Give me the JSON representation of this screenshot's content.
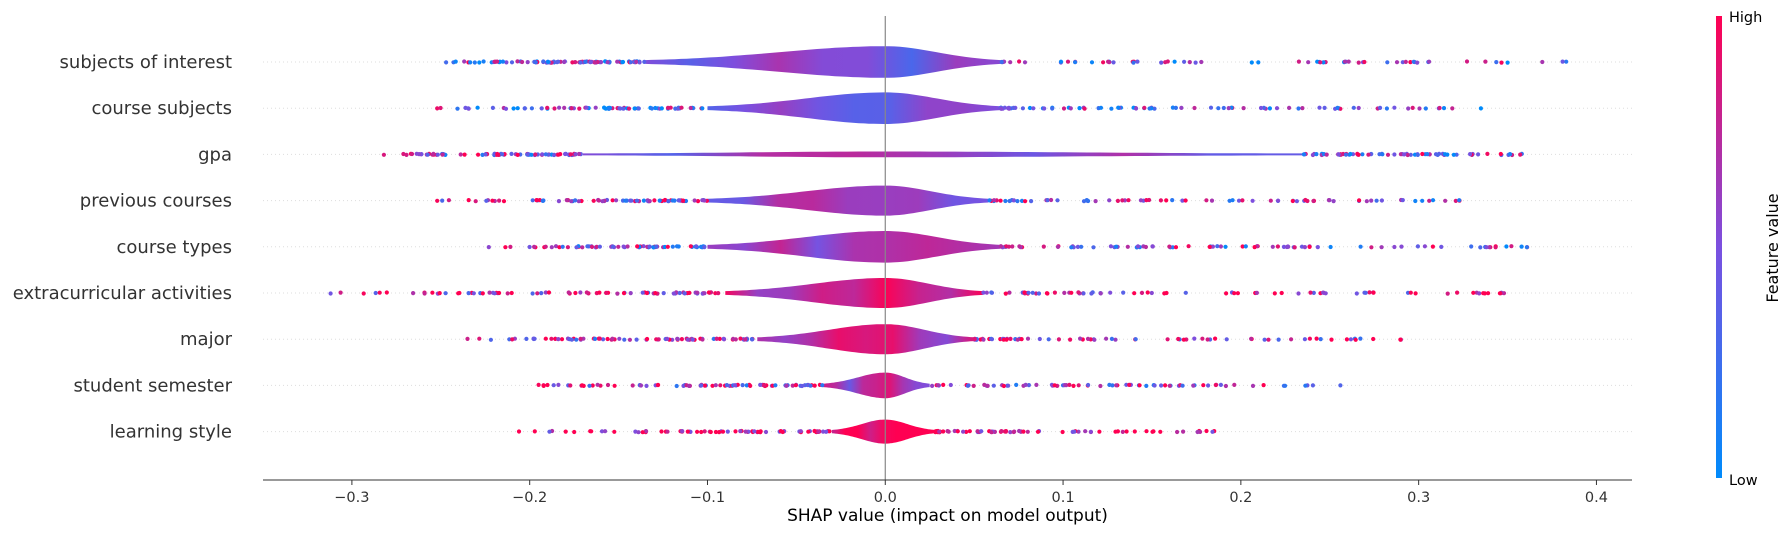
{
  "chart_data": {
    "type": "violin-summary",
    "title": "",
    "xlabel": "SHAP value (impact on model output)",
    "ylabel": "",
    "xlim": [
      -0.35,
      0.42
    ],
    "xticks": [
      -0.3,
      -0.2,
      -0.1,
      0.0,
      0.1,
      0.2,
      0.3,
      0.4
    ],
    "xtick_labels": [
      "−0.3",
      "−0.2",
      "−0.1",
      "0.0",
      "0.1",
      "0.2",
      "0.3",
      "0.4"
    ],
    "features": [
      {
        "name": "subjects of interest",
        "min": -0.247,
        "max": 0.383,
        "core": [
          -0.135,
          0.065
        ],
        "width": 1.0,
        "hue": 0.45
      },
      {
        "name": "course subjects",
        "min": -0.252,
        "max": 0.335,
        "core": [
          -0.1,
          0.065
        ],
        "width": 1.0,
        "hue": 0.4
      },
      {
        "name": "gpa",
        "min": -0.282,
        "max": 0.358,
        "core": [
          -0.17,
          0.235
        ],
        "width": 0.14,
        "hue": 0.55
      },
      {
        "name": "previous courses",
        "min": -0.252,
        "max": 0.323,
        "core": [
          -0.1,
          0.058
        ],
        "width": 0.95,
        "hue": 0.6
      },
      {
        "name": "course types",
        "min": -0.223,
        "max": 0.361,
        "core": [
          -0.1,
          0.065
        ],
        "width": 1.0,
        "hue": 0.55
      },
      {
        "name": "extracurricular activities",
        "min": -0.312,
        "max": 0.348,
        "core": [
          -0.09,
          0.055
        ],
        "width": 0.95,
        "hue": 0.8
      },
      {
        "name": "major",
        "min": -0.235,
        "max": 0.29,
        "core": [
          -0.072,
          0.05
        ],
        "width": 0.95,
        "hue": 0.7
      },
      {
        "name": "student semester",
        "min": -0.195,
        "max": 0.256,
        "core": [
          -0.035,
          0.025
        ],
        "width": 0.8,
        "hue": 0.65
      },
      {
        "name": "learning style",
        "min": -0.206,
        "max": 0.185,
        "core": [
          -0.03,
          0.028
        ],
        "width": 0.75,
        "hue": 0.95
      }
    ],
    "colorbar": {
      "high_label": "High",
      "low_label": "Low",
      "title": "Feature value",
      "low_color": "#008bfb",
      "high_color": "#ff0052"
    },
    "grid": false,
    "legend": "colorbar-right"
  }
}
